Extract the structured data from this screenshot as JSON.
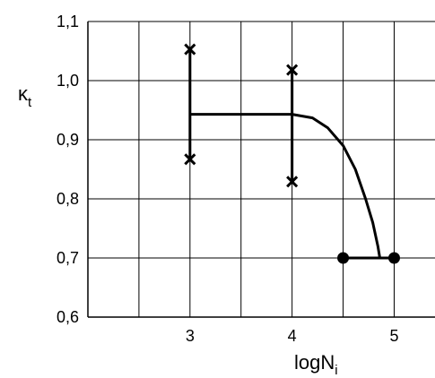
{
  "chart_data": {
    "type": "line",
    "xlabel_main": "logN",
    "xlabel_sub": "i",
    "ylabel_main": "κ",
    "ylabel_sub": "t",
    "xlim": [
      2,
      5.4
    ],
    "ylim": [
      0.6,
      1.1
    ],
    "x_ticks": [
      {
        "value": 3,
        "label": "3"
      },
      {
        "value": 4,
        "label": "4"
      },
      {
        "value": 5,
        "label": "5"
      }
    ],
    "y_ticks": [
      {
        "value": 0.6,
        "label": "0,6"
      },
      {
        "value": 0.7,
        "label": "0,7"
      },
      {
        "value": 0.8,
        "label": "0,8"
      },
      {
        "value": 0.9,
        "label": "0,9"
      },
      {
        "value": 1.0,
        "label": "1,0"
      },
      {
        "value": 1.1,
        "label": "1,1"
      }
    ],
    "x_grid": [
      2,
      2.5,
      3,
      3.5,
      4,
      4.5,
      5
    ],
    "y_grid": [
      0.6,
      0.7,
      0.8,
      0.9,
      1.0,
      1.1
    ],
    "grid": true,
    "series": [
      {
        "curve": [
          [
            3.0,
            0.943
          ],
          [
            4.0,
            0.943
          ],
          [
            4.2,
            0.937
          ],
          [
            4.35,
            0.92
          ],
          [
            4.5,
            0.89
          ],
          [
            4.62,
            0.85
          ],
          [
            4.72,
            0.8
          ],
          [
            4.79,
            0.76
          ],
          [
            4.84,
            0.72
          ],
          [
            4.86,
            0.7
          ]
        ],
        "flat_segment": [
          [
            4.5,
            0.7
          ],
          [
            5.0,
            0.7
          ]
        ]
      }
    ],
    "error_bars": [
      {
        "x": 3.0,
        "low": 0.867,
        "high": 1.053
      },
      {
        "x": 4.0,
        "low": 0.829,
        "high": 1.018
      }
    ],
    "points": [
      {
        "x": 4.5,
        "y": 0.7
      },
      {
        "x": 5.0,
        "y": 0.7
      }
    ]
  }
}
